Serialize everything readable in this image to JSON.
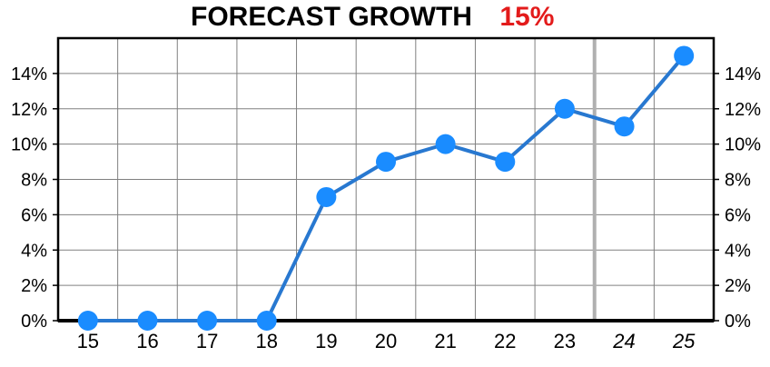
{
  "header": {
    "title": "FORECAST GROWTH",
    "highlight": "15%",
    "highlight_color": "#e31b1b"
  },
  "chart_data": {
    "type": "line",
    "title": "FORECAST GROWTH 15%",
    "xlabel": "",
    "ylabel": "",
    "categories": [
      "15",
      "16",
      "17",
      "18",
      "19",
      "20",
      "21",
      "22",
      "23",
      "24",
      "25"
    ],
    "forecast_categories": [
      "24",
      "25"
    ],
    "series": [
      {
        "values": [
          0,
          0,
          0,
          0,
          7,
          9,
          10,
          9,
          12,
          11,
          15
        ],
        "color": "#1a8cff",
        "line_color": "#2878d0"
      }
    ],
    "ylim": [
      0,
      16
    ],
    "y_ticks": [
      0,
      2,
      4,
      6,
      8,
      10,
      12,
      14
    ],
    "y_tick_labels": [
      "0%",
      "2%",
      "4%",
      "6%",
      "8%",
      "10%",
      "12%",
      "14%"
    ],
    "y_ticks_both_sides": true,
    "grid": true,
    "grid_color": "#808080",
    "forecast_divider_color": "#b0b0b0",
    "legend": "none"
  }
}
